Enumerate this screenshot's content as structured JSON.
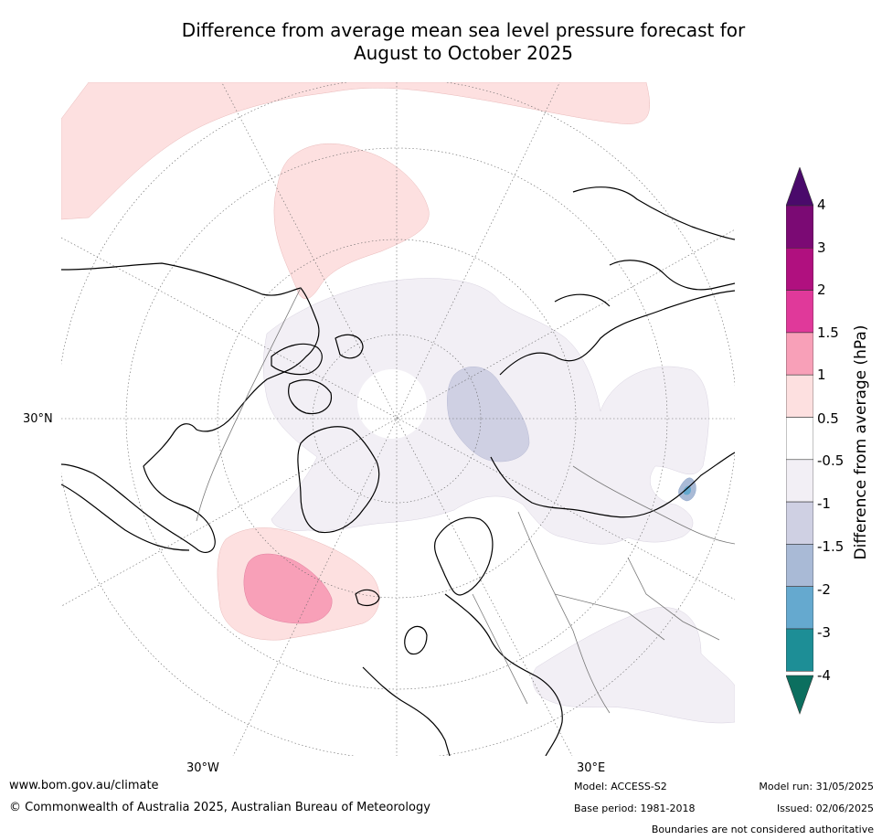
{
  "title": {
    "line1": "Difference from average mean sea level pressure forecast for",
    "line2": "August to October 2025"
  },
  "map": {
    "labels": {
      "lat_30n": "30°N",
      "lon_30w": "30°W",
      "lon_30e": "30°E"
    },
    "anomaly_regions": [
      {
        "name": "north-pacific-high",
        "class": "0.5 to 1"
      },
      {
        "name": "bering-high",
        "class": "0.5 to 1"
      },
      {
        "name": "north-atlantic-high-outer",
        "class": "0.5 to 1"
      },
      {
        "name": "north-atlantic-high-core",
        "class": "1 to 1.5"
      },
      {
        "name": "arctic-eurasia-low",
        "class": "-1 to -0.5"
      },
      {
        "name": "barents-low",
        "class": "-1.5 to -1"
      },
      {
        "name": "central-asia-low",
        "class": "-1 to -0.5"
      },
      {
        "name": "baikal-low",
        "class": "-2 to -1.5"
      }
    ]
  },
  "colorbar": {
    "label": "Difference from average (hPa)",
    "ticks": [
      "4",
      "3",
      "2",
      "1.5",
      "1",
      "0.5",
      "-0.5",
      "-1",
      "-1.5",
      "-2",
      "-3",
      "-4"
    ],
    "colors": [
      "#4a0a6b",
      "#7b0a74",
      "#b0107f",
      "#e0399a",
      "#f8a0b8",
      "#fde0e0",
      "#ffffff",
      "#f2eff5",
      "#cfd0e3",
      "#a9bad6",
      "#65a9cf",
      "#1d8e96",
      "#0c6f5f"
    ]
  },
  "footer": {
    "website": "www.bom.gov.au/climate",
    "copyright": "© Commonwealth of Australia 2025, Australian Bureau of Meteorology",
    "model": "Model: ACCESS-S2",
    "base_period": "Base period: 1981-2018",
    "model_run": "Model run: 31/05/2025",
    "issued": "Issued: 02/06/2025",
    "disclaimer": "Boundaries are not considered authoritative"
  }
}
